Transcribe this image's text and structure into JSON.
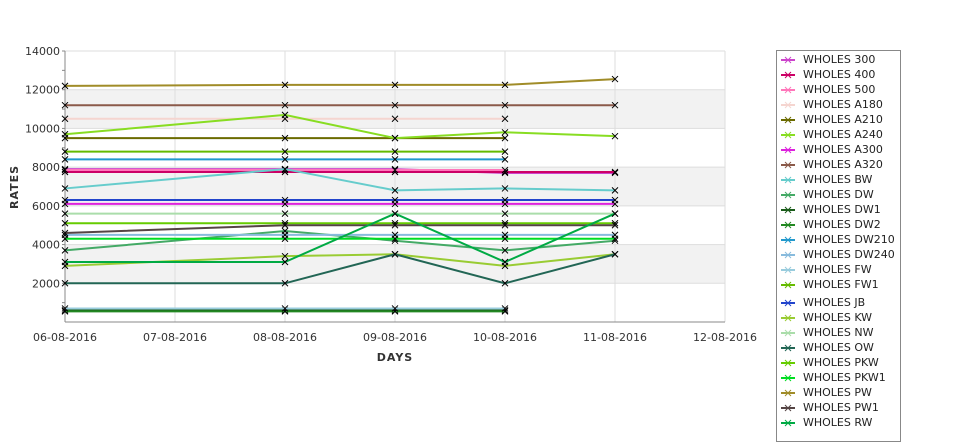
{
  "chart_data": {
    "type": "line",
    "xlabel": "DAYS",
    "ylabel": "RATES",
    "x_ticks": [
      "06-08-2016",
      "07-08-2016",
      "08-08-2016",
      "09-08-2016",
      "10-08-2016",
      "11-08-2016",
      "12-08-2016"
    ],
    "y_ticks": [
      "2000",
      "4000",
      "6000",
      "8000",
      "10000",
      "12000",
      "14000"
    ],
    "ylim": [
      0,
      14000
    ],
    "legend_position": "right",
    "x_points": [
      "06-08-2016",
      "08-08-2016",
      "09-08-2016",
      "10-08-2016",
      "11-08-2016"
    ],
    "series": [
      {
        "name": "WHOLES 300",
        "color": "#cc44cc",
        "values": [
          7900,
          7900,
          7900,
          7700,
          7700
        ]
      },
      {
        "name": "WHOLES 400",
        "color": "#cc0066",
        "values": [
          7750,
          7750,
          7750,
          7750,
          7750
        ]
      },
      {
        "name": "WHOLES 500",
        "color": "#ff77bb",
        "values": [
          7850,
          7850,
          7850,
          7850,
          null
        ]
      },
      {
        "name": "WHOLES A180",
        "color": "#f5d5d0",
        "values": [
          10500,
          10500,
          10500,
          10500,
          null
        ]
      },
      {
        "name": "WHOLES A210",
        "color": "#6b6b00",
        "values": [
          9500,
          9500,
          9500,
          9500,
          null
        ]
      },
      {
        "name": "WHOLES A240",
        "color": "#88dd22",
        "values": [
          9700,
          10700,
          9500,
          9800,
          9600
        ]
      },
      {
        "name": "WHOLES A300",
        "color": "#dd22dd",
        "values": [
          6100,
          6100,
          6100,
          6100,
          6100
        ]
      },
      {
        "name": "WHOLES A320",
        "color": "#8b5a4a",
        "values": [
          11200,
          11200,
          11200,
          11200,
          11200
        ]
      },
      {
        "name": "WHOLES BW",
        "color": "#66cccc",
        "values": [
          6900,
          7900,
          6800,
          6900,
          6800
        ]
      },
      {
        "name": "WHOLES DW",
        "color": "#44aa66",
        "values": [
          3700,
          4700,
          4200,
          3700,
          4200
        ]
      },
      {
        "name": "WHOLES DW1",
        "color": "#1a5c1a",
        "values": [
          600,
          600,
          600,
          600,
          null
        ]
      },
      {
        "name": "WHOLES DW2",
        "color": "#228822",
        "values": [
          550,
          550,
          550,
          550,
          null
        ]
      },
      {
        "name": "WHOLES DW210",
        "color": "#2299cc",
        "values": [
          8400,
          8400,
          8400,
          8400,
          null
        ]
      },
      {
        "name": "WHOLES DW240",
        "color": "#88bbdd",
        "values": [
          4500,
          4500,
          4500,
          4500,
          4500
        ]
      },
      {
        "name": "WHOLES FW",
        "color": "#99ccdd",
        "values": [
          700,
          700,
          700,
          700,
          null
        ]
      },
      {
        "name": "WHOLES FW1",
        "color": "#66bb00",
        "values": [
          8800,
          8800,
          8800,
          8800,
          null
        ]
      },
      {
        "name": "WHOLES JB",
        "color": "#2244cc",
        "values": [
          6300,
          6300,
          6300,
          6300,
          6300
        ]
      },
      {
        "name": "WHOLES KW",
        "color": "#99cc33",
        "values": [
          2900,
          3400,
          3500,
          2900,
          3500
        ]
      },
      {
        "name": "WHOLES NW",
        "color": "#aaddaa",
        "values": [
          5600,
          5600,
          5600,
          5600,
          5600
        ]
      },
      {
        "name": "WHOLES OW",
        "color": "#226655",
        "values": [
          2000,
          2000,
          3500,
          2000,
          3500
        ]
      },
      {
        "name": "WHOLES PKW",
        "color": "#66cc00",
        "values": [
          5100,
          5100,
          5100,
          5100,
          5100
        ]
      },
      {
        "name": "WHOLES PKW1",
        "color": "#00dd22",
        "values": [
          4300,
          4300,
          4300,
          4300,
          4300
        ]
      },
      {
        "name": "WHOLES PW",
        "color": "#a08c28",
        "values": [
          12200,
          12250,
          12250,
          12250,
          12550
        ]
      },
      {
        "name": "WHOLES PW1",
        "color": "#554444",
        "values": [
          4600,
          5000,
          5000,
          5000,
          5000
        ]
      },
      {
        "name": "WHOLES RW",
        "color": "#00aa44",
        "values": [
          3100,
          3100,
          5600,
          3100,
          5600
        ]
      }
    ]
  }
}
